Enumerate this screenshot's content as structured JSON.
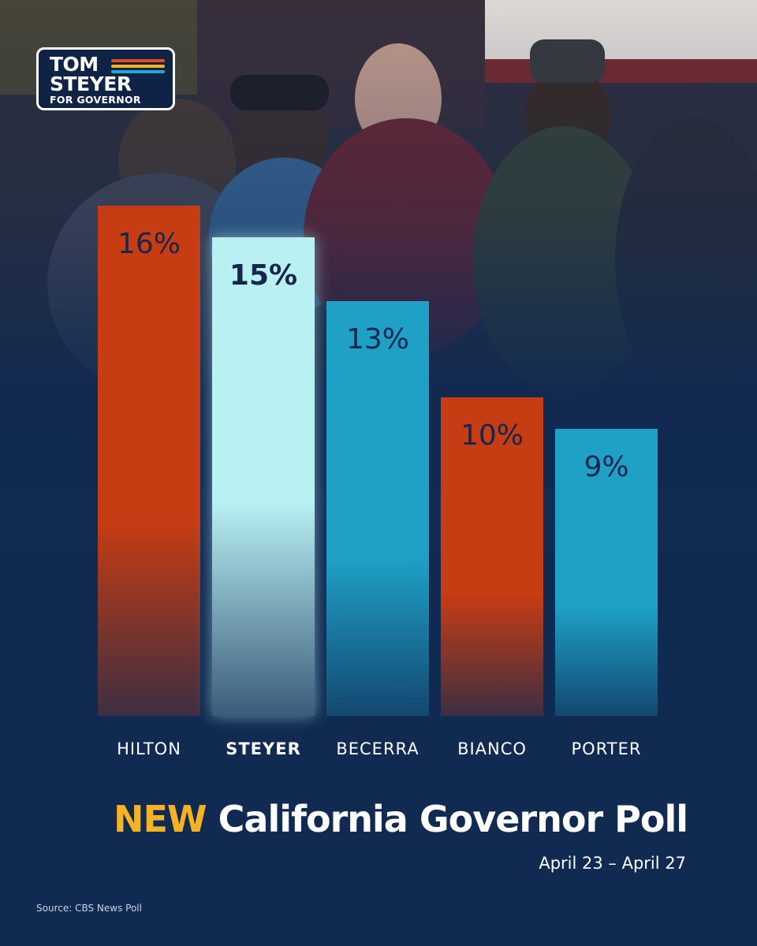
{
  "logo": {
    "line1": "TOM",
    "line2": "STEYER",
    "line3": "FOR GOVERNOR",
    "stripe_colors": [
      "#e84a1c",
      "#f5b324",
      "#22a7d1"
    ]
  },
  "colors": {
    "orange": "#c63c13",
    "cyan": "#1ea0c7",
    "highlight": "#b9f1f3",
    "background": "#102a52",
    "accent": "#f5b324"
  },
  "chart_data": {
    "type": "bar",
    "categories": [
      "HILTON",
      "STEYER",
      "BECERRA",
      "BIANCO",
      "PORTER"
    ],
    "values": [
      16,
      15,
      13,
      10,
      9
    ],
    "value_labels": [
      "16%",
      "15%",
      "13%",
      "10%",
      "9%"
    ],
    "highlighted": "STEYER",
    "bar_colors": [
      "#c63c13",
      "#b9f1f3",
      "#1ea0c7",
      "#c63c13",
      "#1ea0c7"
    ],
    "ylim": [
      0,
      16
    ],
    "grid": false,
    "legend": "none"
  },
  "title": {
    "accent": "NEW",
    "text": " California Governor Poll",
    "dates": "April 23 – April 27"
  },
  "source": "Source: CBS News Poll"
}
